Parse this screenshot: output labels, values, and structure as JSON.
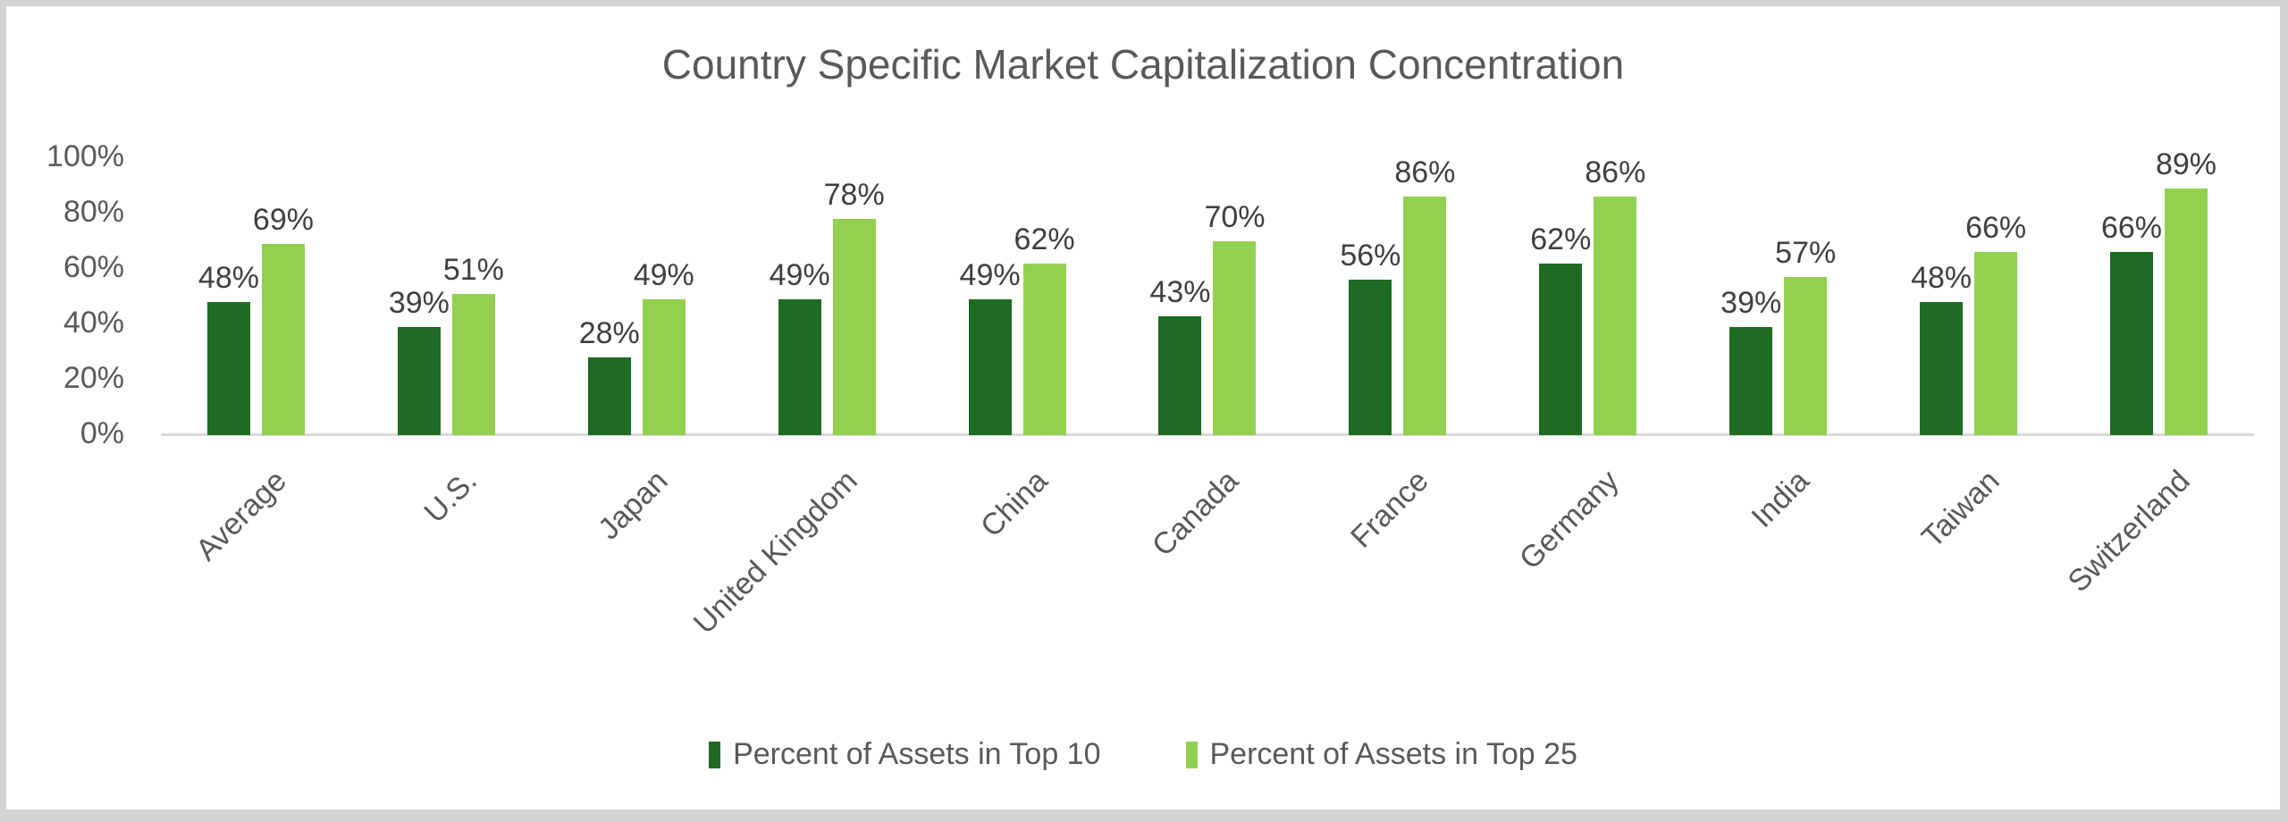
{
  "frame": {
    "border_color": "#d4d4d4",
    "canvas_color": "#ffffff",
    "axis_line_color": "#d9d9d9"
  },
  "chart_data": {
    "type": "bar",
    "title": "Country Specific Market Capitalization Concentration",
    "title_color": "#595959",
    "categories": [
      "Average",
      "U.S.",
      "Japan",
      "United Kingdom",
      "China",
      "Canada",
      "France",
      "Germany",
      "India",
      "Taiwan",
      "Switzerland"
    ],
    "series": [
      {
        "name": "Percent of Assets in Top 10",
        "color": "#1e6b24",
        "values": [
          48,
          39,
          28,
          49,
          49,
          43,
          56,
          62,
          39,
          48,
          66
        ]
      },
      {
        "name": "Percent of Assets in Top 25",
        "color": "#92d050",
        "values": [
          69,
          51,
          49,
          78,
          62,
          70,
          86,
          86,
          57,
          66,
          89
        ]
      }
    ],
    "value_suffix": "%",
    "data_label_color": "#404040",
    "xlabel": "",
    "ylabel": "",
    "ylim": [
      0,
      100
    ],
    "yticks": [
      "0%",
      "20%",
      "40%",
      "60%",
      "80%",
      "100%"
    ],
    "ytick_color": "#595959",
    "category_label_color": "#595959",
    "category_label_rotation_deg": 45,
    "grid": false,
    "legend_position": "bottom"
  }
}
